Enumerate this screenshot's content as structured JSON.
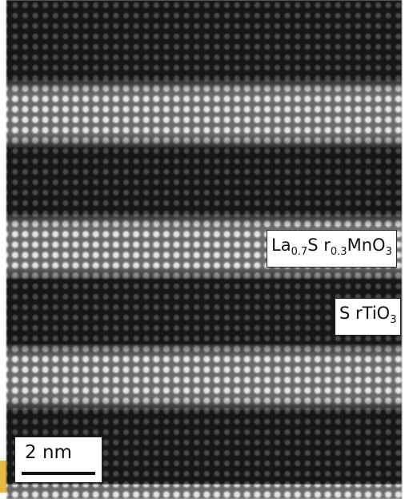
{
  "labels": {
    "lsmo": {
      "segments": [
        "La",
        "0.7",
        "S r",
        "0.3",
        "MnO",
        "3"
      ]
    },
    "sto": {
      "segments": [
        "S rTiO",
        "3"
      ]
    },
    "scale_bar": "2 nm"
  }
}
